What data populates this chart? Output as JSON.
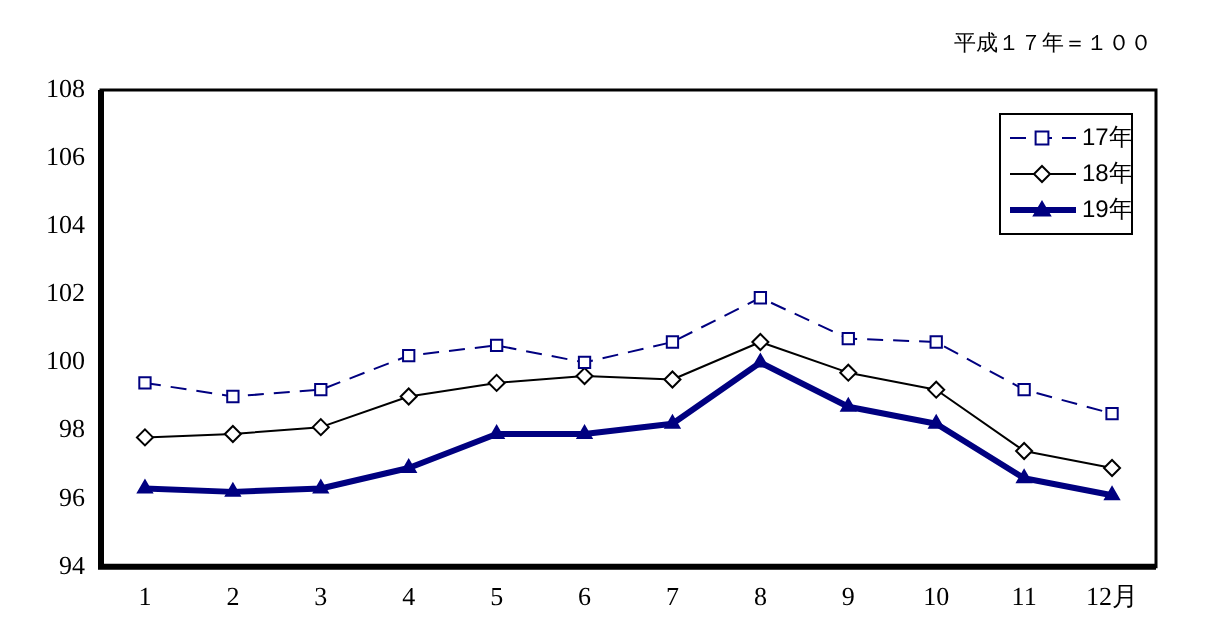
{
  "chart_data": {
    "type": "line",
    "subtitle": "平成１７年＝１００",
    "categories": [
      "1",
      "2",
      "3",
      "4",
      "5",
      "6",
      "7",
      "8",
      "9",
      "10",
      "11",
      "12月"
    ],
    "series": [
      {
        "name": "17年",
        "color": "#000080",
        "marker": "square",
        "line_style": "dashed",
        "values": [
          99.4,
          99.0,
          99.2,
          100.2,
          100.5,
          100.0,
          100.6,
          101.9,
          100.7,
          100.6,
          99.2,
          98.5
        ]
      },
      {
        "name": "18年",
        "color": "#000000",
        "marker": "diamond",
        "line_style": "solid",
        "values": [
          97.8,
          97.9,
          98.1,
          99.0,
          99.4,
          99.6,
          99.5,
          100.6,
          99.7,
          99.2,
          97.4,
          96.9
        ]
      },
      {
        "name": "19年",
        "color": "#000080",
        "marker": "triangle",
        "line_style": "solid",
        "values": [
          96.3,
          96.2,
          96.3,
          96.9,
          97.9,
          97.9,
          98.2,
          100.0,
          98.7,
          98.2,
          96.6,
          96.1
        ]
      }
    ],
    "ylim": [
      94,
      108
    ],
    "yticks": [
      94,
      96,
      98,
      100,
      102,
      104,
      106,
      108
    ],
    "grid": false,
    "legend": "top right"
  }
}
